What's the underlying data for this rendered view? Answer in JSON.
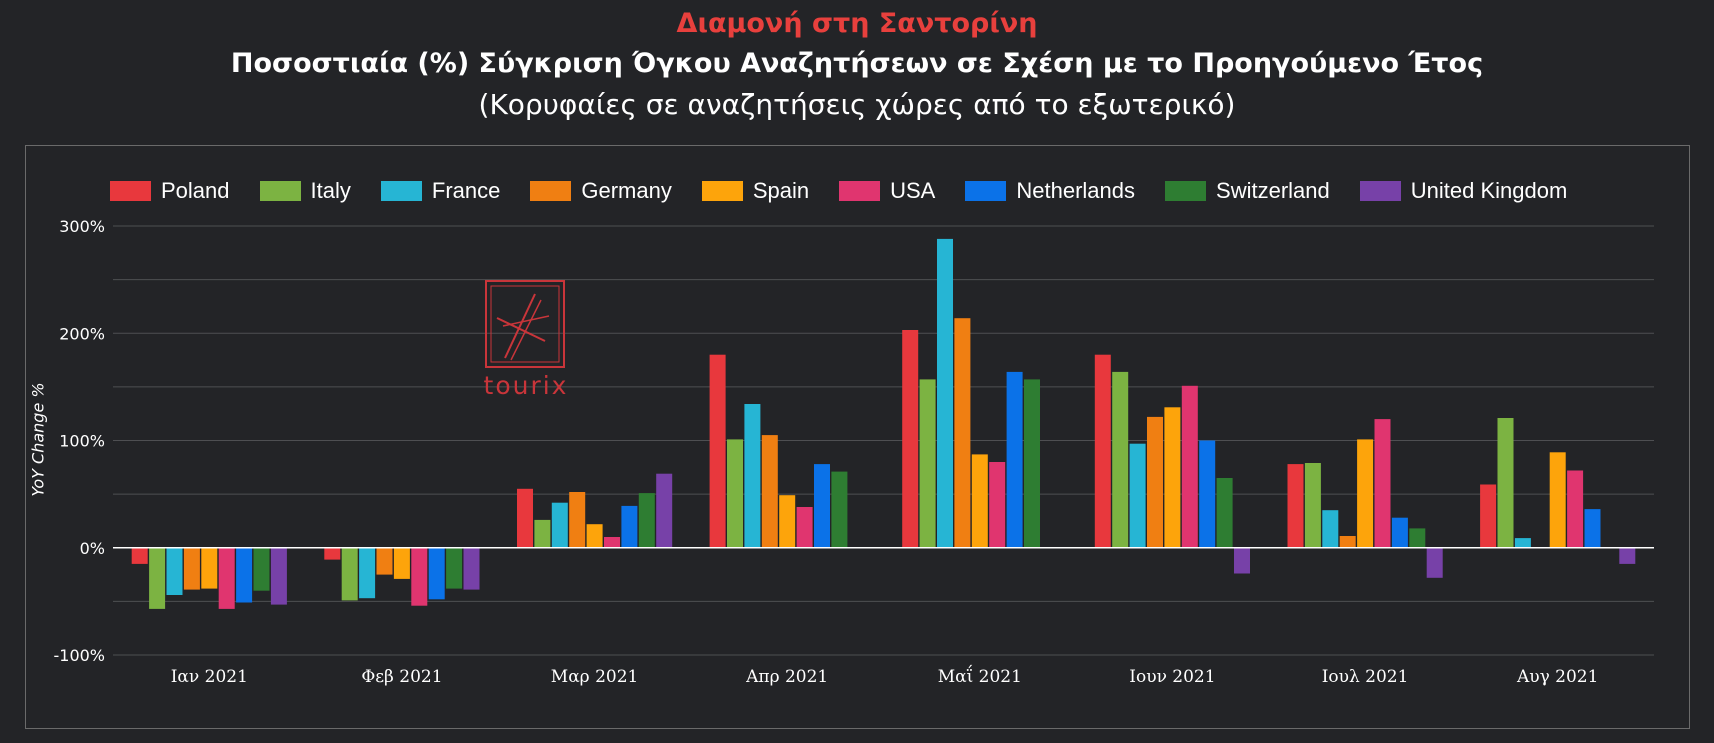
{
  "title": "Διαμονή στη Σαντορίνη",
  "subtitle": "Ποσοστιαία (%) Σύγκριση Όγκου Αναζητήσεων σε Σχέση με το Προηγούμενο Έτος",
  "subtitle2": "(Κορυφαίες σε αναζητήσεις χώρες από το εξωτερικό)",
  "watermark": "tourix",
  "chart_data": {
    "type": "bar",
    "ylabel": "YoY Change %",
    "ylim": [
      -100,
      300
    ],
    "yticks": [
      "300%",
      "200%",
      "100%",
      "0%",
      "-100%"
    ],
    "ytick_values": [
      300,
      200,
      100,
      0,
      -100
    ],
    "categories": [
      "Ιαν 2021",
      "Φεβ 2021",
      "Μαρ 2021",
      "Απρ 2021",
      "Μαΐ 2021",
      "Ιουν 2021",
      "Ιουλ 2021",
      "Αυγ 2021"
    ],
    "series": [
      {
        "name": "Poland",
        "color": "#e8383d",
        "values": [
          -15,
          -11,
          55,
          180,
          203,
          180,
          78,
          59
        ]
      },
      {
        "name": "Italy",
        "color": "#7cb342",
        "values": [
          -57,
          -49,
          26,
          101,
          157,
          164,
          79,
          121
        ]
      },
      {
        "name": "France",
        "color": "#26b5d4",
        "values": [
          -44,
          -47,
          42,
          134,
          288,
          97,
          35,
          9
        ]
      },
      {
        "name": "Germany",
        "color": "#f07f12",
        "values": [
          -39,
          -25,
          52,
          105,
          214,
          122,
          11,
          0
        ]
      },
      {
        "name": "Spain",
        "color": "#fda40b",
        "values": [
          -38,
          -29,
          22,
          49,
          87,
          131,
          101,
          89
        ]
      },
      {
        "name": "USA",
        "color": "#e0356f",
        "values": [
          -57,
          -54,
          10,
          38,
          80,
          151,
          120,
          72
        ]
      },
      {
        "name": "Netherlands",
        "color": "#0b72e8",
        "values": [
          -51,
          -48,
          39,
          78,
          164,
          100,
          28,
          36
        ]
      },
      {
        "name": "Switzerland",
        "color": "#2e7d32",
        "values": [
          -40,
          -38,
          51,
          71,
          157,
          65,
          18,
          0
        ]
      },
      {
        "name": "United Kingdom",
        "color": "#7741a8",
        "values": [
          -53,
          -39,
          69,
          0,
          0,
          -24,
          -28,
          -15
        ]
      }
    ]
  },
  "colors": {
    "title": "#e8403d",
    "grid": "#4e4f52",
    "zero_line": "#ffffff",
    "background": "#232427"
  }
}
